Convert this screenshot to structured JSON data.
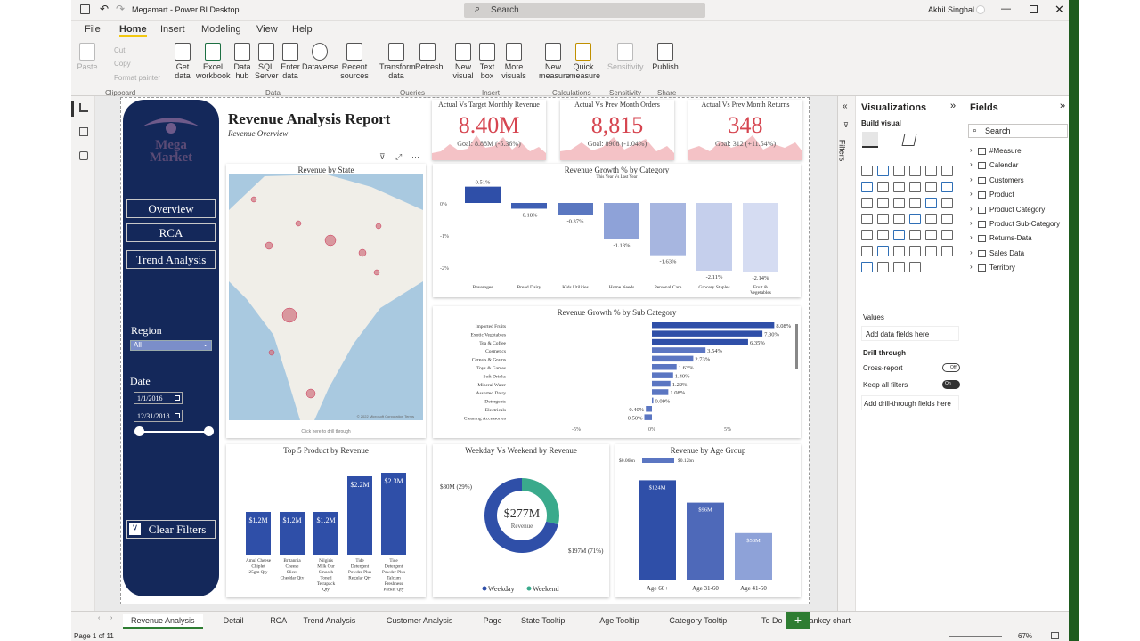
{
  "app": {
    "title": "Megamart - Power BI Desktop",
    "search_placeholder": "Search",
    "user": "Akhil Singhal"
  },
  "menu": [
    "File",
    "Home",
    "Insert",
    "Modeling",
    "View",
    "Help"
  ],
  "ribbon": {
    "clipboard": {
      "paste": "Paste",
      "cut": "Cut",
      "copy": "Copy",
      "format_painter": "Format painter",
      "group": "Clipboard"
    },
    "data": {
      "items": [
        "Get data",
        "Excel workbook",
        "Data hub",
        "SQL Server",
        "Enter data",
        "Dataverse",
        "Recent sources"
      ],
      "group": "Data"
    },
    "queries": {
      "items": [
        "Transform data",
        "Refresh"
      ],
      "group": "Queries"
    },
    "insert": {
      "items": [
        "New visual",
        "Text box",
        "More visuals"
      ],
      "group": "Insert"
    },
    "calculations": {
      "items": [
        "New measure",
        "Quick measure"
      ],
      "group": "Calculations"
    },
    "sensitivity": {
      "items": [
        "Sensitivity"
      ],
      "group": "Sensitivity"
    },
    "share": {
      "items": [
        "Publish"
      ],
      "group": "Share"
    }
  },
  "report": {
    "title": "Revenue Analysis Report",
    "subtitle": "Revenue Overview",
    "logo_text": "Mega Market",
    "nav": [
      "Overview",
      "RCA",
      "Trend Analysis"
    ],
    "region_label": "Region",
    "region_value": "All",
    "date_label": "Date",
    "date_start": "1/1/2016",
    "date_end": "12/31/2018",
    "clear_filters": "Clear Filters",
    "kpis": [
      {
        "title": "Actual Vs Target Monthly Revenue",
        "value": "8.40M",
        "goal": "Goal: 8.88M (-5.36%)"
      },
      {
        "title": "Actual Vs Prev Month Orders",
        "value": "8,815",
        "goal": "Goal: 8908 (-1.04%)"
      },
      {
        "title": "Actual Vs Prev Month Returns",
        "value": "348",
        "goal": "Goal: 312 (+11.54%)"
      }
    ],
    "map": {
      "title": "Revenue by State",
      "footer": "Click here to drill through",
      "credit": "© 2022 Microsoft Corporation  Terms"
    }
  },
  "chart_data": [
    {
      "type": "bar",
      "title": "Revenue Growth % by Category",
      "subtitle": "This Year Vs Last Year",
      "categories": [
        "Beverages",
        "Bread Dairy",
        "Kids Utilities",
        "Home Needs",
        "Personal Care",
        "Grocery Staples",
        "Fruit & Vegetables"
      ],
      "values": [
        0.51,
        -0.18,
        -0.37,
        -1.13,
        -1.63,
        -2.11,
        -2.14
      ],
      "labels": [
        "0.51%",
        "-0.18%",
        "-0.37%",
        "-1.13%",
        "-1.63%",
        "-2.11%",
        "-2.14%"
      ],
      "ticks": [
        "0%",
        "-1%",
        "-2%"
      ]
    },
    {
      "type": "bar",
      "title": "Revenue Growth % by Sub Category",
      "categories": [
        "Imported Fruits",
        "Exotic Vegetables",
        "Tea & Coffee",
        "Cosmetics",
        "Cereals & Grains",
        "Toys & Games",
        "Soft Drinks",
        "Mineral Water",
        "Assorted Dairy",
        "Detergents",
        "Electricals",
        "Cleaning Accessories"
      ],
      "values": [
        8.08,
        7.3,
        6.35,
        3.54,
        2.73,
        1.63,
        1.4,
        1.22,
        1.08,
        0.09,
        -0.4,
        -0.5
      ],
      "labels": [
        "8.08%",
        "7.30%",
        "6.35%",
        "3.54%",
        "2.73%",
        "1.63%",
        "1.40%",
        "1.22%",
        "1.08%",
        "0.09%",
        "-0.40%",
        "-0.50%"
      ],
      "ticks": [
        "-5%",
        "0%",
        "5%"
      ]
    },
    {
      "type": "bar",
      "title": "Top 5 Product by Revenue",
      "categories": [
        "Amul Cheese Chiplet 25gm Qty",
        "Britannia Cheese Slices Cheddar Qty",
        "Nilgiris Milk Our Smooth Toned Tetrapack Qty",
        "Tide Detergent Powder Plus Regular Qty",
        "Tide Detergent Powder Plus Talcum Freshness Packet Qty"
      ],
      "values": [
        1.2,
        1.2,
        1.2,
        2.2,
        2.3
      ],
      "labels": [
        "$1.2M",
        "$1.2M",
        "$1.2M",
        "$2.2M",
        "$2.3M"
      ]
    },
    {
      "type": "pie",
      "title": "Weekday Vs Weekend by Revenue",
      "center_value": "$277M",
      "center_label": "Revenue",
      "slices": [
        {
          "name": "Weekday",
          "value": 197,
          "label": "$197M (71%)",
          "color": "#2f4fa8"
        },
        {
          "name": "Weekend",
          "value": 80,
          "label": "$80M (29%)",
          "color": "#3aaa8c"
        }
      ]
    },
    {
      "type": "bar",
      "title": "Revenue by Age Group",
      "categories": [
        "Age 60+",
        "Age 31-60",
        "Age 41-50"
      ],
      "values": [
        124,
        96,
        58
      ],
      "labels": [
        "$124M",
        "$96M",
        "$58M"
      ],
      "legend_min": "$0.06bn",
      "legend_max": "$0.12bn"
    }
  ],
  "panes": {
    "filters": "Filters",
    "visualizations": "Visualizations",
    "build_visual": "Build visual",
    "values": "Values",
    "values_placeholder": "Add data fields here",
    "drill": "Drill through",
    "cross_report": "Cross-report",
    "cross_state": "Off",
    "keep_filters": "Keep all filters",
    "keep_state": "On",
    "drill_placeholder": "Add drill-through fields here",
    "fields": "Fields",
    "fields_search": "Search",
    "tables": [
      "#Measure",
      "Calendar",
      "Customers",
      "Product",
      "Product Category",
      "Product Sub-Category",
      "Returns-Data",
      "Sales Data",
      "Territory"
    ]
  },
  "tabs": [
    "Revenue Analysis",
    "Detail",
    "RCA",
    "Trend Analysis",
    "Customer Analysis",
    "Page",
    "State Tooltip",
    "Age Tooltip",
    "Category Tooltip",
    "To Do",
    "Sankey chart"
  ],
  "status": {
    "page": "Page 1 of 11",
    "zoom": "67%"
  },
  "colors": {
    "accent": "#f2c811",
    "navy": "#14285a",
    "bar": "#2f4fa8",
    "kpi": "#d64550"
  }
}
